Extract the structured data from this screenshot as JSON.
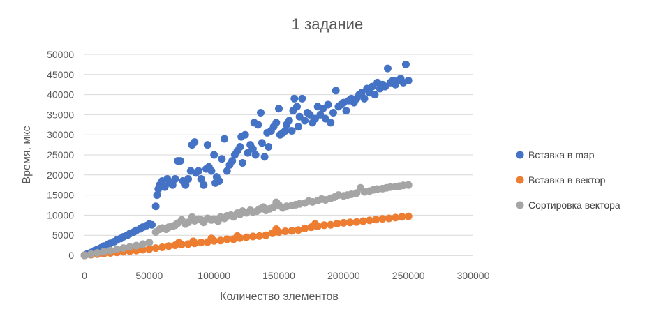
{
  "chart_data": {
    "type": "scatter",
    "title": "1 задание",
    "xlabel": "Количество элементов",
    "ylabel": "Время, мкс",
    "xlim": [
      0,
      300000
    ],
    "ylim": [
      0,
      50000
    ],
    "x_ticks": [
      "0",
      "50000",
      "100000",
      "150000",
      "200000",
      "250000",
      "300000"
    ],
    "y_ticks": [
      "0",
      "5000",
      "10000",
      "15000",
      "20000",
      "25000",
      "30000",
      "35000",
      "40000",
      "45000",
      "50000"
    ],
    "grid": "horizontal",
    "legend_position": "right",
    "series": [
      {
        "name": "Вставка в map",
        "color": "#4472c4",
        "points": [
          [
            0,
            0
          ],
          [
            2000,
            300
          ],
          [
            5000,
            700
          ],
          [
            8000,
            1200
          ],
          [
            10000,
            1500
          ],
          [
            13000,
            1900
          ],
          [
            15000,
            2300
          ],
          [
            18000,
            2700
          ],
          [
            20000,
            3000
          ],
          [
            23000,
            3400
          ],
          [
            25000,
            3800
          ],
          [
            28000,
            4200
          ],
          [
            30000,
            4600
          ],
          [
            33000,
            5000
          ],
          [
            35000,
            5400
          ],
          [
            38000,
            5800
          ],
          [
            40000,
            6200
          ],
          [
            43000,
            6600
          ],
          [
            45000,
            7000
          ],
          [
            48000,
            7400
          ],
          [
            50000,
            7800
          ],
          [
            52000,
            7600
          ],
          [
            55000,
            12200
          ],
          [
            56000,
            15000
          ],
          [
            57000,
            16500
          ],
          [
            58000,
            17500
          ],
          [
            60000,
            18500
          ],
          [
            62000,
            17000
          ],
          [
            64000,
            19000
          ],
          [
            66000,
            18000
          ],
          [
            68000,
            17500
          ],
          [
            70000,
            19000
          ],
          [
            72000,
            23500
          ],
          [
            74000,
            23500
          ],
          [
            76000,
            18500
          ],
          [
            78000,
            17500
          ],
          [
            80000,
            19000
          ],
          [
            82000,
            21000
          ],
          [
            83000,
            27500
          ],
          [
            85000,
            28200
          ],
          [
            86000,
            20500
          ],
          [
            88000,
            21000
          ],
          [
            90000,
            19000
          ],
          [
            92000,
            17500
          ],
          [
            94000,
            21500
          ],
          [
            95000,
            27500
          ],
          [
            96000,
            22000
          ],
          [
            98000,
            21000
          ],
          [
            100000,
            25000
          ],
          [
            101000,
            18000
          ],
          [
            102000,
            19500
          ],
          [
            104000,
            18500
          ],
          [
            106000,
            24000
          ],
          [
            108000,
            29000
          ],
          [
            110000,
            21000
          ],
          [
            112000,
            22500
          ],
          [
            114000,
            23500
          ],
          [
            116000,
            25000
          ],
          [
            118000,
            26000
          ],
          [
            120000,
            27000
          ],
          [
            121000,
            29500
          ],
          [
            122000,
            23000
          ],
          [
            124000,
            30000
          ],
          [
            126000,
            25500
          ],
          [
            128000,
            27500
          ],
          [
            130000,
            26500
          ],
          [
            131000,
            33000
          ],
          [
            132000,
            25000
          ],
          [
            134000,
            32500
          ],
          [
            136000,
            35500
          ],
          [
            137000,
            28000
          ],
          [
            139000,
            24500
          ],
          [
            141000,
            30500
          ],
          [
            142000,
            27000
          ],
          [
            144000,
            31000
          ],
          [
            146000,
            32000
          ],
          [
            148000,
            33000
          ],
          [
            150000,
            36500
          ],
          [
            151000,
            30000
          ],
          [
            153000,
            30500
          ],
          [
            155000,
            31000
          ],
          [
            156000,
            32500
          ],
          [
            158000,
            33500
          ],
          [
            160000,
            31000
          ],
          [
            161000,
            36000
          ],
          [
            162000,
            39000
          ],
          [
            164000,
            37000
          ],
          [
            165000,
            32000
          ],
          [
            166000,
            34500
          ],
          [
            168000,
            39000
          ],
          [
            170000,
            33500
          ],
          [
            172000,
            35500
          ],
          [
            174000,
            35000
          ],
          [
            176000,
            33000
          ],
          [
            178000,
            34000
          ],
          [
            180000,
            37000
          ],
          [
            182000,
            35000
          ],
          [
            184000,
            36500
          ],
          [
            186000,
            34000
          ],
          [
            188000,
            37500
          ],
          [
            190000,
            33000
          ],
          [
            192000,
            35500
          ],
          [
            194000,
            41000
          ],
          [
            196000,
            37000
          ],
          [
            198000,
            37500
          ],
          [
            200000,
            38000
          ],
          [
            202000,
            36000
          ],
          [
            204000,
            38500
          ],
          [
            206000,
            39000
          ],
          [
            208000,
            38000
          ],
          [
            210000,
            39000
          ],
          [
            212000,
            40000
          ],
          [
            214000,
            40500
          ],
          [
            216000,
            39000
          ],
          [
            218000,
            41500
          ],
          [
            220000,
            40500
          ],
          [
            222000,
            42000
          ],
          [
            224000,
            40000
          ],
          [
            226000,
            43000
          ],
          [
            228000,
            41500
          ],
          [
            230000,
            42500
          ],
          [
            232000,
            42000
          ],
          [
            234000,
            46500
          ],
          [
            236000,
            43000
          ],
          [
            238000,
            43500
          ],
          [
            240000,
            42500
          ],
          [
            242000,
            43500
          ],
          [
            244000,
            44000
          ],
          [
            246000,
            43000
          ],
          [
            248000,
            47500
          ],
          [
            250000,
            43500
          ]
        ]
      },
      {
        "name": "Вставка в вектор",
        "color": "#ed7d31",
        "points": [
          [
            0,
            0
          ],
          [
            5000,
            150
          ],
          [
            10000,
            300
          ],
          [
            15000,
            450
          ],
          [
            20000,
            600
          ],
          [
            25000,
            750
          ],
          [
            30000,
            900
          ],
          [
            35000,
            1050
          ],
          [
            40000,
            1200
          ],
          [
            45000,
            1400
          ],
          [
            50000,
            1550
          ],
          [
            55000,
            1800
          ],
          [
            60000,
            2000
          ],
          [
            65000,
            2300
          ],
          [
            70000,
            2500
          ],
          [
            73000,
            3200
          ],
          [
            75000,
            2700
          ],
          [
            80000,
            2800
          ],
          [
            84000,
            3500
          ],
          [
            85000,
            3000
          ],
          [
            90000,
            3200
          ],
          [
            95000,
            3300
          ],
          [
            98000,
            4200
          ],
          [
            100000,
            3600
          ],
          [
            105000,
            3700
          ],
          [
            110000,
            4000
          ],
          [
            115000,
            4000
          ],
          [
            118000,
            4800
          ],
          [
            120000,
            4300
          ],
          [
            125000,
            4500
          ],
          [
            130000,
            4700
          ],
          [
            135000,
            4800
          ],
          [
            140000,
            5000
          ],
          [
            145000,
            5500
          ],
          [
            148000,
            6500
          ],
          [
            150000,
            5800
          ],
          [
            155000,
            6000
          ],
          [
            160000,
            6100
          ],
          [
            165000,
            6300
          ],
          [
            170000,
            6700
          ],
          [
            175000,
            7000
          ],
          [
            178000,
            7800
          ],
          [
            180000,
            7200
          ],
          [
            185000,
            7500
          ],
          [
            190000,
            7600
          ],
          [
            195000,
            7900
          ],
          [
            200000,
            8100
          ],
          [
            205000,
            8200
          ],
          [
            210000,
            8300
          ],
          [
            215000,
            8500
          ],
          [
            220000,
            8700
          ],
          [
            225000,
            8900
          ],
          [
            230000,
            9100
          ],
          [
            235000,
            9200
          ],
          [
            240000,
            9400
          ],
          [
            245000,
            9600
          ],
          [
            250000,
            9700
          ]
        ]
      },
      {
        "name": "Сортировка вектора",
        "color": "#a5a5a5",
        "points": [
          [
            0,
            0
          ],
          [
            5000,
            300
          ],
          [
            10000,
            600
          ],
          [
            15000,
            900
          ],
          [
            20000,
            1200
          ],
          [
            25000,
            1500
          ],
          [
            30000,
            1800
          ],
          [
            35000,
            2100
          ],
          [
            40000,
            2400
          ],
          [
            45000,
            2800
          ],
          [
            50000,
            3200
          ],
          [
            55000,
            5800
          ],
          [
            58000,
            6500
          ],
          [
            60000,
            6800
          ],
          [
            63000,
            6500
          ],
          [
            65000,
            7000
          ],
          [
            68000,
            7200
          ],
          [
            70000,
            7500
          ],
          [
            72000,
            8000
          ],
          [
            75000,
            8800
          ],
          [
            78000,
            7800
          ],
          [
            80000,
            8200
          ],
          [
            83000,
            9500
          ],
          [
            85000,
            8600
          ],
          [
            88000,
            9000
          ],
          [
            90000,
            8800
          ],
          [
            92000,
            8200
          ],
          [
            95000,
            9200
          ],
          [
            98000,
            8800
          ],
          [
            100000,
            9000
          ],
          [
            103000,
            8500
          ],
          [
            105000,
            9500
          ],
          [
            108000,
            9200
          ],
          [
            110000,
            9800
          ],
          [
            113000,
            10000
          ],
          [
            115000,
            9600
          ],
          [
            118000,
            10500
          ],
          [
            120000,
            10200
          ],
          [
            122000,
            11000
          ],
          [
            125000,
            10600
          ],
          [
            128000,
            11200
          ],
          [
            130000,
            10800
          ],
          [
            133000,
            11000
          ],
          [
            135000,
            11500
          ],
          [
            138000,
            12000
          ],
          [
            140000,
            11200
          ],
          [
            143000,
            11600
          ],
          [
            146000,
            12000
          ],
          [
            148000,
            13200
          ],
          [
            150000,
            12500
          ],
          [
            153000,
            11800
          ],
          [
            156000,
            12200
          ],
          [
            160000,
            12400
          ],
          [
            163000,
            12600
          ],
          [
            166000,
            12800
          ],
          [
            170000,
            13000
          ],
          [
            173000,
            13500
          ],
          [
            176000,
            13300
          ],
          [
            180000,
            13600
          ],
          [
            183000,
            14000
          ],
          [
            186000,
            13800
          ],
          [
            190000,
            14200
          ],
          [
            193000,
            14500
          ],
          [
            196000,
            15000
          ],
          [
            200000,
            14800
          ],
          [
            203000,
            15000
          ],
          [
            206000,
            15200
          ],
          [
            210000,
            15500
          ],
          [
            213000,
            16800
          ],
          [
            216000,
            15800
          ],
          [
            220000,
            16000
          ],
          [
            223000,
            16300
          ],
          [
            226000,
            16500
          ],
          [
            230000,
            16600
          ],
          [
            233000,
            16800
          ],
          [
            236000,
            17000
          ],
          [
            240000,
            17100
          ],
          [
            243000,
            17200
          ],
          [
            246000,
            17400
          ],
          [
            250000,
            17500
          ]
        ]
      }
    ]
  }
}
